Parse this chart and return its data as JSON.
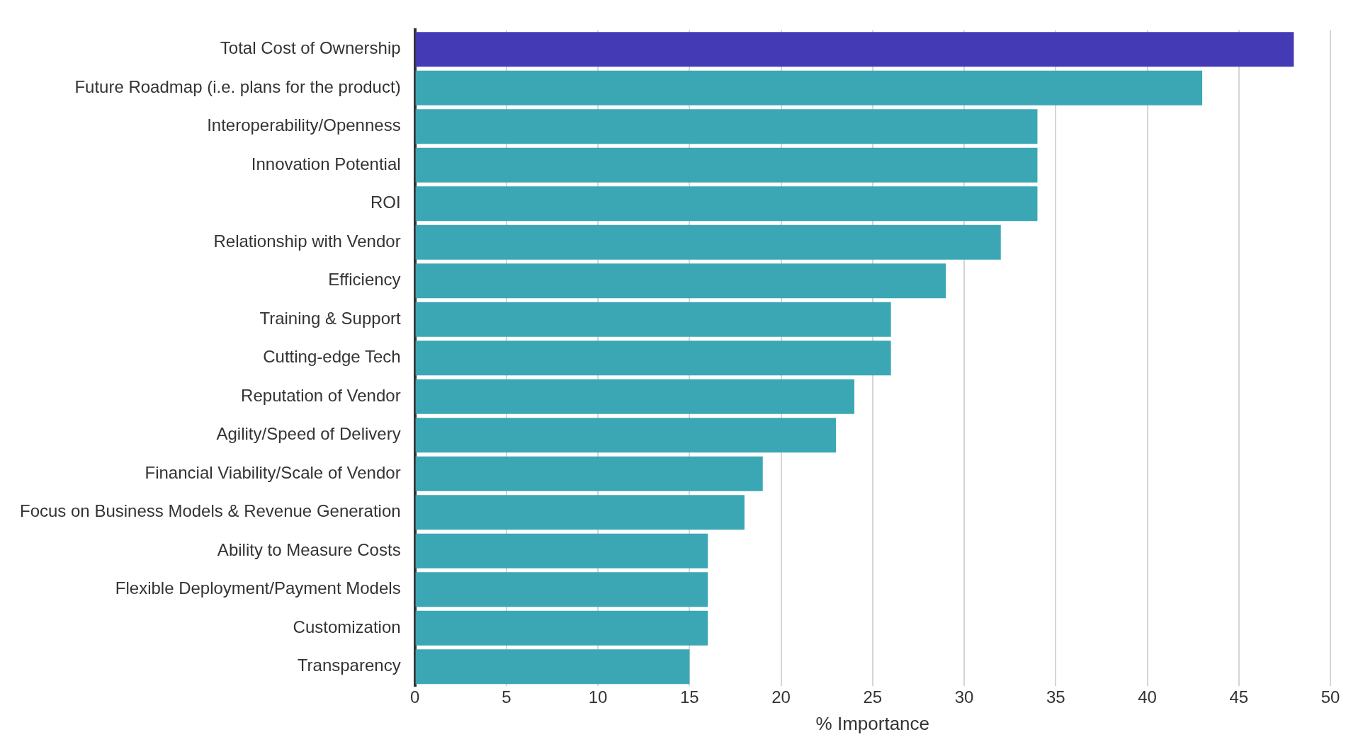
{
  "chart_data": {
    "type": "bar",
    "orientation": "horizontal",
    "xlabel": "% Importance",
    "categories": [
      "Total Cost of Ownership",
      "Future Roadmap (i.e. plans for the product)",
      "Interoperability/Openness",
      "Innovation Potential",
      "ROI",
      "Relationship with Vendor",
      "Efficiency",
      "Training & Support",
      "Cutting-edge Tech",
      "Reputation of Vendor",
      "Agility/Speed of Delivery",
      "Financial Viability/Scale of Vendor",
      "Focus on Business Models & Revenue Generation",
      "Ability to Measure Costs",
      "Flexible Deployment/Payment Models",
      "Customization",
      "Transparency"
    ],
    "values": [
      48,
      43,
      34,
      34,
      34,
      32,
      29,
      26,
      26,
      24,
      23,
      19,
      18,
      16,
      16,
      16,
      15
    ],
    "colors": [
      "#443ab6",
      "#3ba7b5",
      "#3ba7b5",
      "#3ba7b5",
      "#3ba7b5",
      "#3ba7b5",
      "#3ba7b5",
      "#3ba7b5",
      "#3ba7b5",
      "#3ba7b5",
      "#3ba7b5",
      "#3ba7b5",
      "#3ba7b5",
      "#3ba7b5",
      "#3ba7b5",
      "#3ba7b5",
      "#3ba7b5"
    ],
    "xlim": [
      0,
      50
    ],
    "xticks": [
      0,
      5,
      10,
      15,
      20,
      25,
      30,
      35,
      40,
      45,
      50
    ],
    "grid": "x",
    "legend": false
  }
}
